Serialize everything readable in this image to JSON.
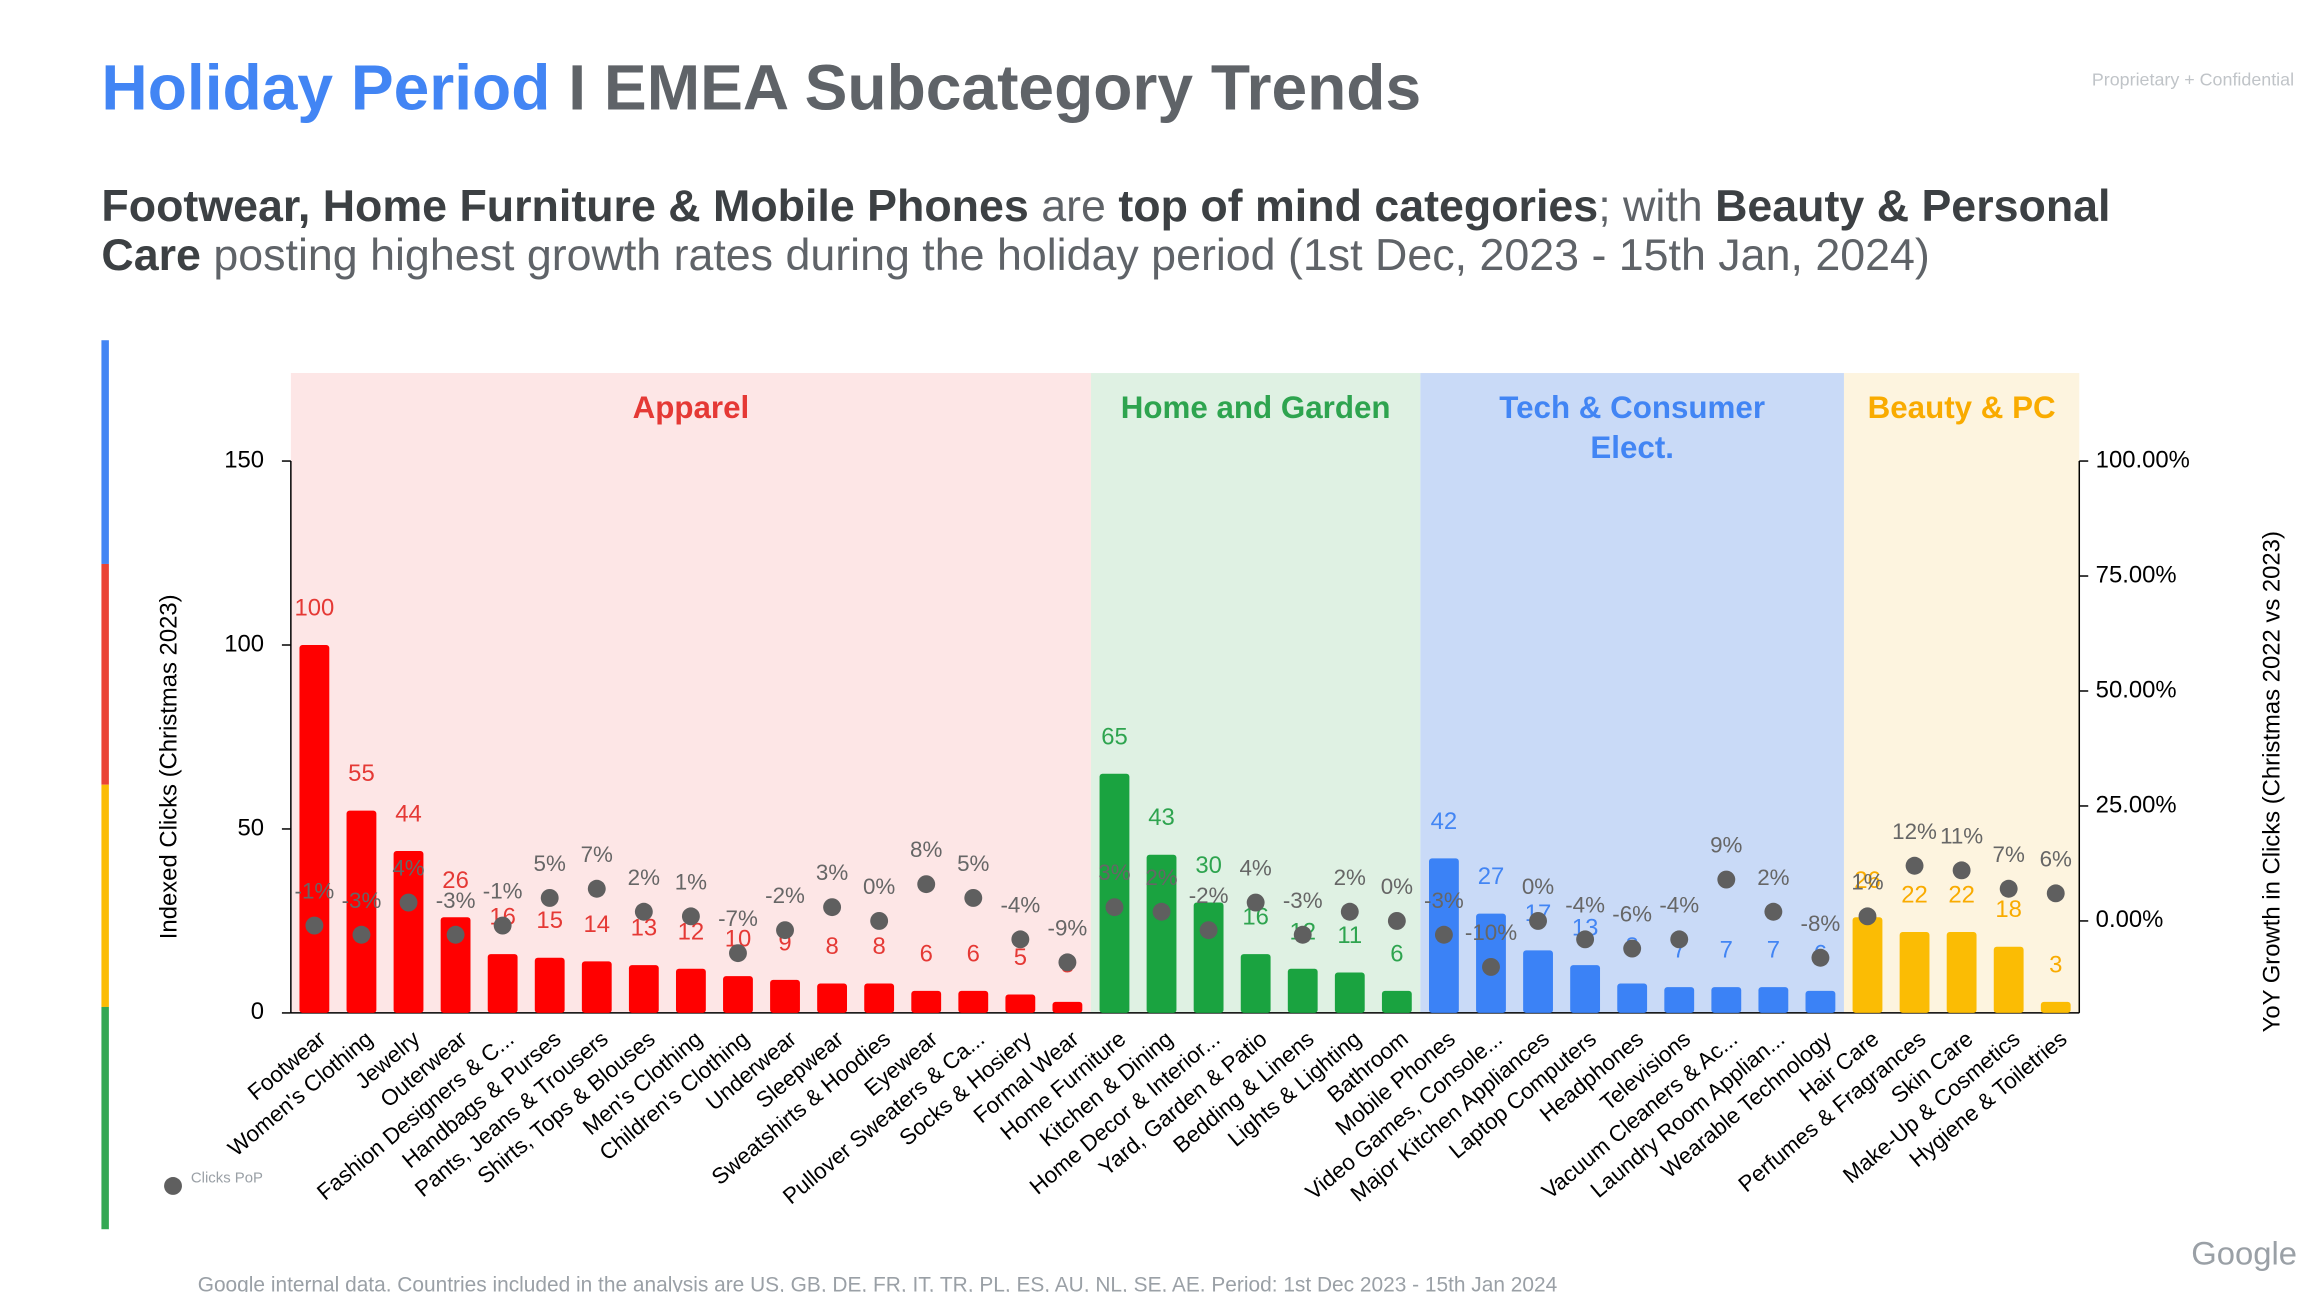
{
  "chart_data": {
    "type": "bar",
    "title": {
      "highlight": "Holiday Period",
      "rest": "I EMEA Subcategory Trends"
    },
    "confidential": "Proprietary + Confidential",
    "subtitle": [
      {
        "text": "Footwear, Home Furniture & Mobile Phones",
        "bold": true
      },
      {
        "text": " are ",
        "bold": false
      },
      {
        "text": "top of mind categories",
        "bold": true
      },
      {
        "text": "; with ",
        "bold": false
      },
      {
        "text": "Beauty & Personal Care",
        "bold": true
      },
      {
        "text": " posting highest growth rates during the holiday period (1st Dec, 2023 - 15th Jan, 2024)",
        "bold": false
      }
    ],
    "y_label": "Indexed Clicks (Christmas 2023)",
    "y2_label": "YoY Growth in Clicks (Christmas 2022 vs 2023)",
    "ylim": [
      0,
      150
    ],
    "yticks": [
      0,
      50,
      100,
      150
    ],
    "y2lim": [
      -20,
      100
    ],
    "y2ticks": [
      {
        "value": 0,
        "label": "0.00%"
      },
      {
        "value": 25,
        "label": "25.00%"
      },
      {
        "value": 50,
        "label": "50.00%"
      },
      {
        "value": 75,
        "label": "75.00%"
      },
      {
        "value": 100,
        "label": "100.00%"
      }
    ],
    "legend": {
      "name": "Clicks PoP",
      "color": "#5f5f5f"
    },
    "groups": [
      {
        "name": "Apparel",
        "color": "#ff0000",
        "label_color": "#e53935",
        "background": "#fde6e6",
        "categories": [
          "Footwear",
          "Women's Clothing",
          "Jewelry",
          "Outerwear",
          "Fashion Designers & C...",
          "Handbags & Purses",
          "Pants, Jeans & Trousers",
          "Shirts, Tops & Blouses",
          "Men's Clothing",
          "Children's Clothing",
          "Underwear",
          "Sleepwear",
          "Sweatshirts & Hoodies",
          "Eyewear",
          "Pullover Sweaters & Ca...",
          "Socks & Hosiery",
          "Formal Wear"
        ],
        "values": [
          100,
          55,
          44,
          26,
          16,
          15,
          14,
          13,
          12,
          10,
          9,
          8,
          8,
          6,
          6,
          5,
          3
        ],
        "growth": [
          -1,
          -3,
          4,
          -3,
          -1,
          5,
          7,
          2,
          1,
          -7,
          -2,
          3,
          0,
          8,
          5,
          -4,
          -9
        ],
        "growth_labels": [
          "-1%",
          "-3%",
          "4%",
          "-3%",
          "-1%",
          "5%",
          "7%",
          "2%",
          "1%",
          "-7%",
          "-2%",
          "3%",
          "0%",
          "8%",
          "5%",
          "-4%",
          "-9%"
        ]
      },
      {
        "name": "Home and Garden",
        "color": "#1aa340",
        "label_color": "#2ea44f",
        "background": "#dff1e3",
        "categories": [
          "Home Furniture",
          "Kitchen & Dining",
          "Home Decor & Interior...",
          "Yard, Garden & Patio",
          "Bedding & Linens",
          "Lights & Lighting",
          "Bathroom"
        ],
        "values": [
          65,
          43,
          30,
          16,
          12,
          11,
          6
        ],
        "growth": [
          3,
          2,
          -2,
          4,
          -3,
          2,
          0
        ],
        "growth_labels": [
          "3%",
          "2%",
          "-2%",
          "4%",
          "-3%",
          "2%",
          "0%"
        ]
      },
      {
        "name": "Tech & Consumer Elect.",
        "color": "#3b82f6",
        "label_color": "#4285f4",
        "background": "#c9daf7",
        "categories": [
          "Mobile Phones",
          "Video Games, Console...",
          "Major Kitchen Appliances",
          "Laptop Computers",
          "Headphones",
          "Televisions",
          "Vacuum Cleaners & Ac...",
          "Laundry Room Applian...",
          "Wearable Technology"
        ],
        "values": [
          42,
          27,
          17,
          13,
          8,
          7,
          7,
          7,
          6
        ],
        "growth": [
          -3,
          -10,
          0,
          -4,
          -6,
          -4,
          9,
          2,
          -8
        ],
        "growth_labels": [
          "-3%",
          "-10%",
          "0%",
          "-4%",
          "-6%",
          "-4%",
          "9%",
          "2%",
          "-8%"
        ]
      },
      {
        "name": "Beauty & PC",
        "color": "#fbbc04",
        "label_color": "#f9ab00",
        "background": "#fdf4df",
        "categories": [
          "Hair Care",
          "Perfumes & Fragrances",
          "Skin Care",
          "Make-Up & Cosmetics",
          "Hygiene & Toiletries"
        ],
        "values": [
          26,
          22,
          22,
          18,
          3
        ],
        "growth": [
          1,
          12,
          11,
          7,
          6
        ],
        "growth_labels": [
          "1%",
          "12%",
          "11%",
          "7%",
          "6%"
        ]
      }
    ],
    "footnote": "Google internal data. Countries included in the analysis are US, GB, DE, FR, IT, TR, PL, ES, AU, NL, SE, AE. Period: 1st Dec 2023 - 15th Jan 2024",
    "logo": "Google"
  }
}
